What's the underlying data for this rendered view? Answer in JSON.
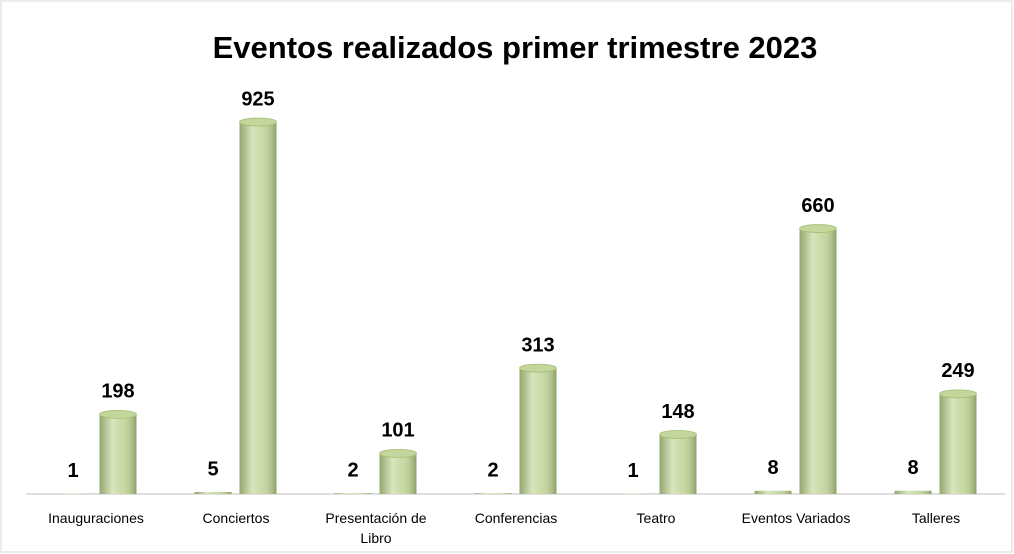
{
  "chart_data": {
    "type": "bar",
    "title": "Eventos realizados primer trimestre 2023",
    "categories": [
      "Inauguraciones",
      "Conciertos",
      "Presentación de Libro",
      "Conferencias",
      "Teatro",
      "Eventos Variados",
      "Talleres"
    ],
    "series": [
      {
        "color": "#c3d69b",
        "values": [
          1,
          5,
          2,
          2,
          1,
          8,
          8
        ]
      },
      {
        "color": "#c3d69b",
        "values": [
          198,
          925,
          101,
          313,
          148,
          660,
          249
        ]
      }
    ]
  }
}
